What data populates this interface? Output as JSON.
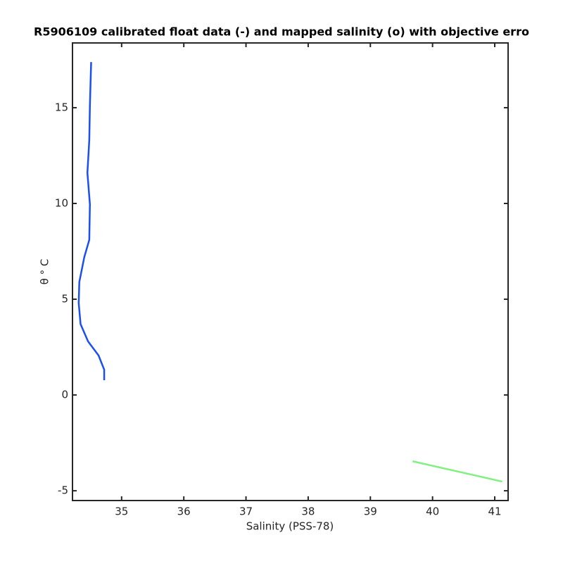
{
  "chart_data": {
    "type": "line",
    "title": "R5906109 calibrated float data (-) and mapped salinity (o) with objective erro",
    "xlabel": "Salinity (PSS-78)",
    "ylabel": "θ ° C",
    "xlim": [
      34.21,
      41.215
    ],
    "ylim": [
      -5.51,
      18.38
    ],
    "xticks": [
      35,
      36,
      37,
      38,
      39,
      40,
      41
    ],
    "yticks": [
      -5,
      0,
      5,
      10,
      15
    ],
    "grid": false,
    "series": [
      {
        "color": "#1a4ff0",
        "x": [
          34.51,
          34.49,
          34.48,
          34.45,
          34.49,
          34.48,
          34.4,
          34.32,
          34.31,
          34.34,
          34.46,
          34.63,
          34.72,
          34.72
        ],
        "values": [
          17.38,
          15.1,
          13.3,
          11.6,
          9.96,
          8.1,
          7.2,
          5.9,
          4.8,
          3.7,
          2.8,
          2.06,
          1.32,
          0.77
        ]
      },
      {
        "color": "#80f080",
        "x": [
          39.68,
          41.12
        ],
        "values": [
          -3.46,
          -4.52
        ]
      }
    ]
  }
}
